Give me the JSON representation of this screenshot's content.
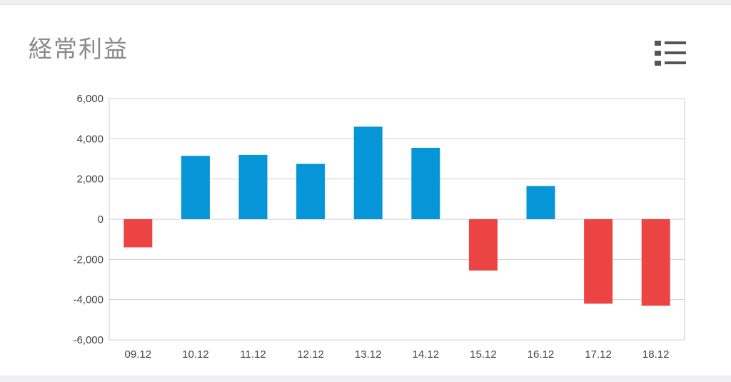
{
  "header": {
    "title": "経常利益",
    "menu_icon": "list-menu-icon"
  },
  "colors": {
    "positive": "#0695d6",
    "negative": "#ec4343",
    "grid": "#cfcfcf",
    "axis_text": "#444444",
    "title_text": "#8a8a8a",
    "icon": "#555555"
  },
  "chart_data": {
    "type": "bar",
    "title": "経常利益",
    "xlabel": "",
    "ylabel": "",
    "categories": [
      "09.12",
      "10.12",
      "11.12",
      "12.12",
      "13.12",
      "14.12",
      "15.12",
      "16.12",
      "17.12",
      "18.12"
    ],
    "values": [
      -1400,
      3150,
      3200,
      2750,
      4600,
      3550,
      -2550,
      1650,
      -4200,
      -4300
    ],
    "ylim": [
      -6000,
      6000
    ],
    "yticks": [
      6000,
      4000,
      2000,
      0,
      -2000,
      -4000,
      -6000
    ],
    "ytick_labels": [
      "6,000",
      "4,000",
      "2,000",
      "0",
      "-2,000",
      "-4,000",
      "-6,000"
    ],
    "grid": true,
    "legend": "none"
  }
}
